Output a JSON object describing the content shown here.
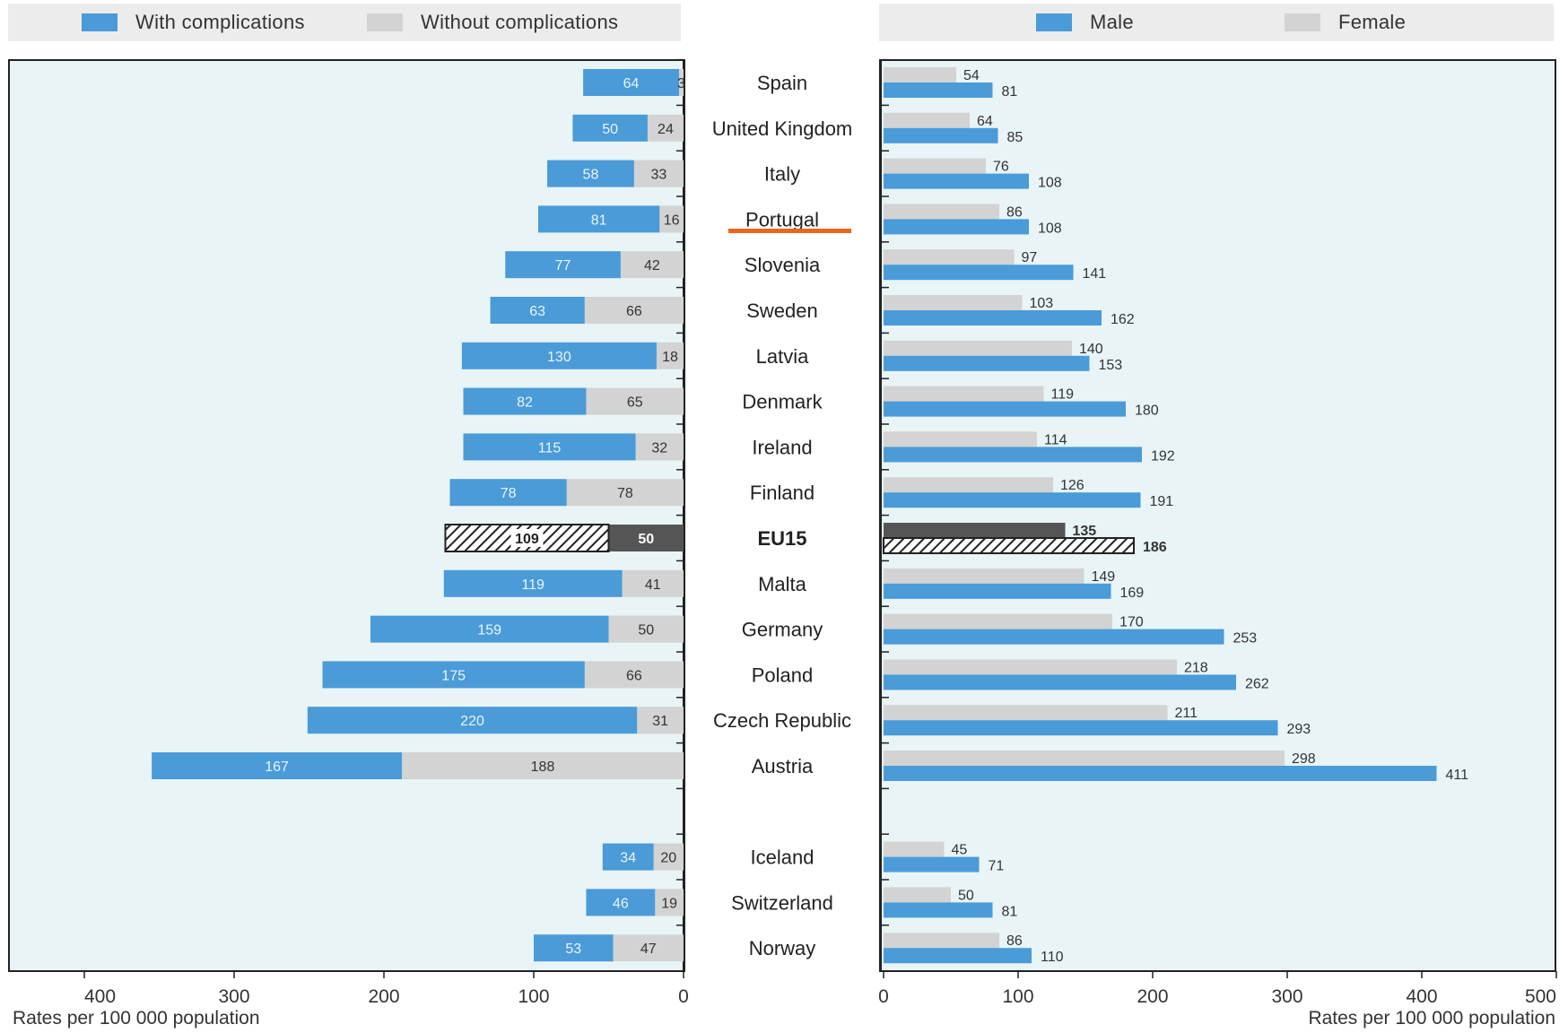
{
  "legend_left": {
    "items": [
      {
        "label": "With complications",
        "color": "#4a9bd8"
      },
      {
        "label": "Without complications",
        "color": "#d3d3d3"
      }
    ]
  },
  "legend_right": {
    "items": [
      {
        "label": "Male",
        "color": "#4a9bd8"
      },
      {
        "label": "Female",
        "color": "#d3d3d3"
      }
    ]
  },
  "highlight_color": "#e8671b",
  "highlighted_country": "Portugal",
  "chart_data": [
    {
      "type": "bar",
      "orientation": "horizontal",
      "stacked": true,
      "direction": "right-to-left",
      "xlabel": "Rates per 100 000 population",
      "xlim": [
        0,
        400
      ],
      "xticks": [
        400,
        300,
        200,
        100,
        0
      ],
      "categories": [
        "Spain",
        "United Kingdom",
        "Italy",
        "Portugal",
        "Slovenia",
        "Sweden",
        "Latvia",
        "Denmark",
        "Ireland",
        "Finland",
        "EU15",
        "Malta",
        "Germany",
        "Poland",
        "Czech Republic",
        "Austria",
        "",
        "Iceland",
        "Switzerland",
        "Norway"
      ],
      "series": [
        {
          "name": "With complications",
          "color": "#4a9bd8",
          "values": [
            64,
            50,
            58,
            81,
            77,
            63,
            130,
            82,
            115,
            78,
            109,
            119,
            159,
            175,
            220,
            167,
            null,
            34,
            46,
            53
          ]
        },
        {
          "name": "Without complications",
          "color": "#d3d3d3",
          "values": [
            3,
            24,
            33,
            16,
            42,
            66,
            18,
            65,
            32,
            78,
            50,
            41,
            50,
            66,
            31,
            188,
            null,
            20,
            19,
            47
          ]
        }
      ],
      "value_labels": {
        "With complications": [
          "64",
          "50",
          "58",
          "81",
          "77",
          "63",
          "130",
          "82",
          "115",
          "78",
          "109",
          "119",
          "159",
          "175",
          "220",
          "167",
          "",
          "34",
          "46",
          "53"
        ],
        "Without complications": [
          "3",
          "24",
          "33",
          "16",
          "42",
          "66",
          "18",
          "65",
          "32",
          "78",
          "50",
          "41",
          "50",
          "66",
          "31",
          "188",
          "",
          "20",
          "19",
          "47"
        ]
      },
      "emphasis_category": "EU15"
    },
    {
      "type": "bar",
      "orientation": "horizontal",
      "grouped": true,
      "xlabel": "Rates per 100 000 population",
      "xlim": [
        0,
        500
      ],
      "xticks": [
        0,
        100,
        200,
        300,
        400,
        500
      ],
      "categories": [
        "Spain",
        "United Kingdom",
        "Italy",
        "Portugal",
        "Slovenia",
        "Sweden",
        "Latvia",
        "Denmark",
        "Ireland",
        "Finland",
        "EU15",
        "Malta",
        "Germany",
        "Poland",
        "Czech Republic",
        "Austria",
        "",
        "Iceland",
        "Switzerland",
        "Norway"
      ],
      "series": [
        {
          "name": "Female",
          "color": "#d3d3d3",
          "values": [
            54,
            64,
            76,
            86,
            97,
            103,
            140,
            119,
            114,
            126,
            135,
            149,
            170,
            218,
            211,
            298,
            null,
            45,
            50,
            86
          ]
        },
        {
          "name": "Male",
          "color": "#4a9bd8",
          "values": [
            81,
            85,
            108,
            108,
            141,
            162,
            153,
            180,
            192,
            191,
            186,
            169,
            253,
            262,
            293,
            411,
            null,
            71,
            81,
            110
          ]
        }
      ],
      "emphasis_category": "EU15"
    }
  ]
}
